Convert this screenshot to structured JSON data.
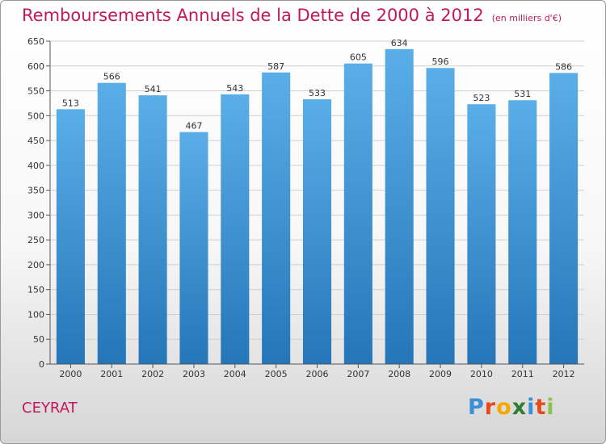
{
  "chart_data": {
    "type": "bar",
    "title": "Remboursements Annuels de la Dette de 2000 à 2012",
    "subtitle": "(en milliers d'€)",
    "categories": [
      "2000",
      "2001",
      "2002",
      "2003",
      "2004",
      "2005",
      "2006",
      "2007",
      "2008",
      "2009",
      "2010",
      "2011",
      "2012"
    ],
    "values": [
      513,
      566,
      541,
      467,
      543,
      587,
      533,
      605,
      634,
      596,
      523,
      531,
      586
    ],
    "ylim": [
      0,
      650
    ],
    "yticks": [
      0,
      50,
      100,
      150,
      200,
      250,
      300,
      350,
      400,
      450,
      500,
      550,
      600,
      650
    ],
    "grid": true,
    "bar_color_top": "#5aaee8",
    "bar_color_bottom": "#2576b8"
  },
  "location": "CEYRAT",
  "logo": {
    "letters": [
      "P",
      "r",
      "o",
      "x",
      "i",
      "t",
      "i"
    ],
    "colors": [
      "#3a8fd6",
      "#e64a19",
      "#f6a800",
      "#2e7d32",
      "#3a8fd6",
      "#e64a19",
      "#8bc34a"
    ]
  },
  "colors": {
    "title": "#c2185b",
    "grid": "#cfcfcf"
  }
}
